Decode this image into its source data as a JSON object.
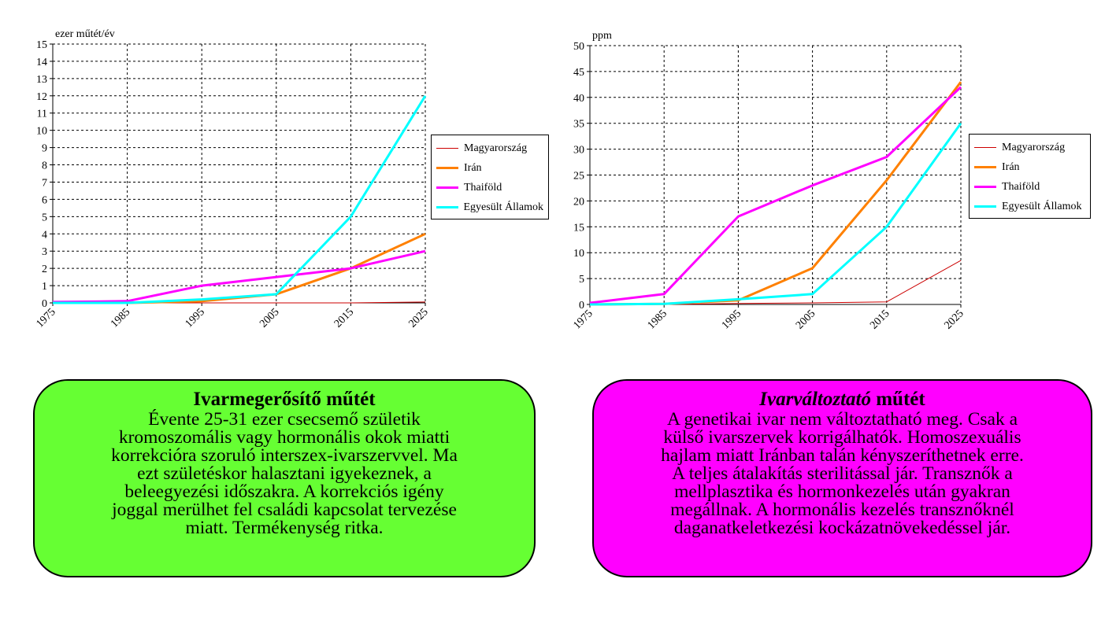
{
  "chart_data": [
    {
      "type": "line",
      "title": "",
      "ylabel": "ezer műtét/év",
      "xlabel": "",
      "x": [
        1975,
        1985,
        1995,
        2005,
        2015,
        2025
      ],
      "ylim": [
        0,
        15
      ],
      "yticks": [
        0,
        1,
        2,
        3,
        4,
        5,
        6,
        7,
        8,
        9,
        10,
        11,
        12,
        13,
        14,
        15
      ],
      "grid": true,
      "legend_position": "right",
      "series": [
        {
          "name": "Magyarország",
          "color": "#cc0000",
          "width": 1,
          "values": [
            0,
            0,
            0,
            0,
            0,
            0.05
          ]
        },
        {
          "name": "Irán",
          "color": "#ff8000",
          "width": 3,
          "values": [
            0,
            0,
            0.1,
            0.5,
            2,
            4
          ]
        },
        {
          "name": "Thaiföld",
          "color": "#ff00ff",
          "width": 3,
          "values": [
            0.05,
            0.1,
            1,
            1.5,
            2,
            3
          ]
        },
        {
          "name": "Egyesült Államok",
          "color": "#00ffff",
          "width": 3,
          "values": [
            0,
            0,
            0.2,
            0.5,
            5,
            12
          ]
        }
      ]
    },
    {
      "type": "line",
      "title": "",
      "ylabel": "ppm",
      "xlabel": "",
      "x": [
        1975,
        1985,
        1995,
        2005,
        2015,
        2025
      ],
      "ylim": [
        0,
        50
      ],
      "yticks": [
        0,
        5,
        10,
        15,
        20,
        25,
        30,
        35,
        40,
        45,
        50
      ],
      "grid": true,
      "legend_position": "right",
      "series": [
        {
          "name": "Magyarország",
          "color": "#cc0000",
          "width": 1,
          "values": [
            0,
            0,
            0.2,
            0.3,
            0.5,
            8.5
          ]
        },
        {
          "name": "Irán",
          "color": "#ff8000",
          "width": 3,
          "values": [
            0,
            0.1,
            0.8,
            7,
            24,
            43
          ]
        },
        {
          "name": "Thaiföld",
          "color": "#ff00ff",
          "width": 3,
          "values": [
            0.3,
            2,
            17,
            23,
            28.5,
            42
          ]
        },
        {
          "name": "Egyesült Államok",
          "color": "#00ffff",
          "width": 3,
          "values": [
            0,
            0.1,
            1,
            2,
            15,
            35
          ]
        }
      ]
    }
  ],
  "boxes": {
    "left": {
      "title": "Ivarmegerősítő műtét",
      "lines": [
        "Évente 25-31 ezer csecsemő születik",
        "kromoszomális vagy hormonális okok miatti",
        "korrekcióra szoruló interszex-ivarszervvel. Ma",
        "ezt születéskor halasztani igyekeznek, a",
        "beleegyezési időszakra. A korrekciós igény",
        "joggal merülhet fel családi kapcsolat tervezése",
        "miatt. Termékenység ritka."
      ],
      "color": "#66ff33"
    },
    "right": {
      "title_italic": "Ivarváltoztató",
      "title_rest": " műtét",
      "lines": [
        "A genetikai ivar nem változtatható meg. Csak a",
        "külső ivarszervek korrigálhatók. Homoszexuális",
        "hajlam miatt Iránban talán kényszeríthetnek erre.",
        "A teljes átalakítás sterilitással jár. Transznők a",
        "mellplasztika és hormonkezelés után gyakran",
        "megállnak. A hormonális kezelés transznőknél",
        "daganatkeletkezési kockázatnövekedéssel jár."
      ],
      "color": "#ff00ff"
    }
  }
}
